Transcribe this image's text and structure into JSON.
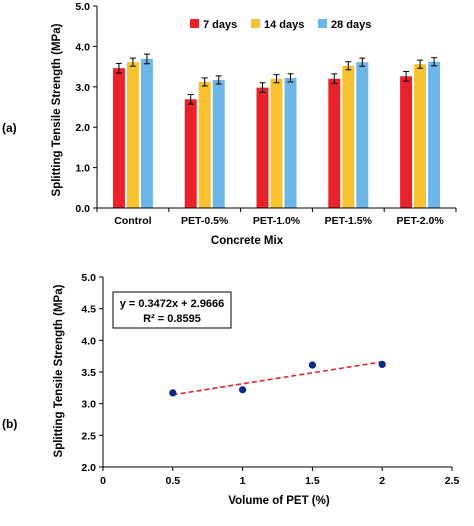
{
  "panels": {
    "a_label": "(a)",
    "b_label": "(b)"
  },
  "chart_data": [
    {
      "type": "bar",
      "title": "",
      "xlabel": "Concrete Mix",
      "ylabel": "Splitting Tensile Strength (MPa)",
      "ylim": [
        0,
        5.0
      ],
      "yticks": [
        "0.0",
        "1.0",
        "2.0",
        "3.0",
        "4.0",
        "5.0"
      ],
      "grid": false,
      "legend_position": "top-right",
      "categories": [
        "Control",
        "PET-0.5%",
        "PET-1.0%",
        "PET-1.5%",
        "PET-2.0%"
      ],
      "series": [
        {
          "name": "7 days",
          "color": "#e8212b",
          "values": [
            3.46,
            2.69,
            2.98,
            3.2,
            3.26
          ],
          "errors": [
            0.12,
            0.12,
            0.12,
            0.12,
            0.12
          ]
        },
        {
          "name": "14 days",
          "color": "#f7c22f",
          "values": [
            3.61,
            3.12,
            3.2,
            3.52,
            3.56
          ],
          "errors": [
            0.1,
            0.1,
            0.1,
            0.1,
            0.1
          ]
        },
        {
          "name": "28 days",
          "color": "#6cb6e8",
          "values": [
            3.69,
            3.17,
            3.22,
            3.61,
            3.62
          ],
          "errors": [
            0.12,
            0.1,
            0.1,
            0.1,
            0.1
          ]
        }
      ]
    },
    {
      "type": "scatter",
      "title": "",
      "xlabel": "Volume of PET (%)",
      "ylabel": "Splitting Tensile Strength (MPa)",
      "xlim": [
        0,
        2.5
      ],
      "ylim": [
        2.0,
        5.0
      ],
      "xticks": [
        "0",
        "0.5",
        "1",
        "1.5",
        "2",
        "2.5"
      ],
      "yticks": [
        "2.0",
        "2.5",
        "3.0",
        "3.5",
        "4.0",
        "4.5",
        "5.0"
      ],
      "grid": false,
      "point_color": "#0a2a8c",
      "trend_color": "#e8212b",
      "x": [
        0.5,
        1.0,
        1.5,
        2.0
      ],
      "y": [
        3.17,
        3.22,
        3.61,
        3.62
      ],
      "trendline": {
        "slope": 0.3472,
        "intercept": 2.9666,
        "x_range": [
          0.5,
          2.0
        ]
      },
      "equation": "y = 0.3472x + 2.9666",
      "r_squared": "R² = 0.8595"
    }
  ]
}
